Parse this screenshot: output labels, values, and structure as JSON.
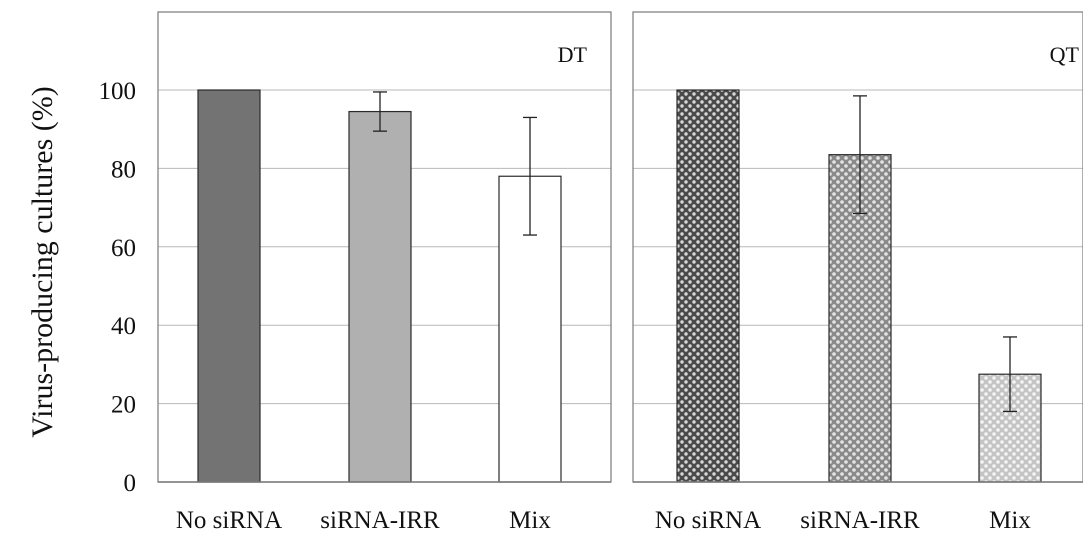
{
  "chart_data": [
    {
      "type": "bar",
      "panel_label": "DT",
      "categories": [
        "No siRNA",
        "siRNA-IRR",
        "Mix"
      ],
      "values": [
        100,
        94.5,
        78
      ],
      "error": [
        0,
        5,
        15
      ],
      "fills": [
        "solid-dark",
        "solid-medium",
        "white"
      ],
      "ylabel": "Virus-producing cultures (%)",
      "ylim": [
        0,
        100
      ],
      "yticks": [
        0,
        20,
        40,
        60,
        80,
        100
      ],
      "grid": true
    },
    {
      "type": "bar",
      "panel_label": "QT",
      "categories": [
        "No siRNA",
        "siRNA-IRR",
        "Mix"
      ],
      "values": [
        100,
        83.5,
        27.5
      ],
      "error": [
        0,
        15,
        9.5
      ],
      "fills": [
        "dots-dark",
        "dots-medium",
        "dots-light"
      ],
      "ylim": [
        0,
        100
      ],
      "yticks": [
        0,
        20,
        40,
        60,
        80,
        100
      ],
      "grid": true
    }
  ],
  "colors": {
    "solid-dark": "#737373",
    "solid-medium": "#b0b0b0",
    "white": "#ffffff",
    "grid": "#b8b8b8",
    "axis": "#7a7a7a",
    "bar_edge": "#2a2a2a"
  }
}
